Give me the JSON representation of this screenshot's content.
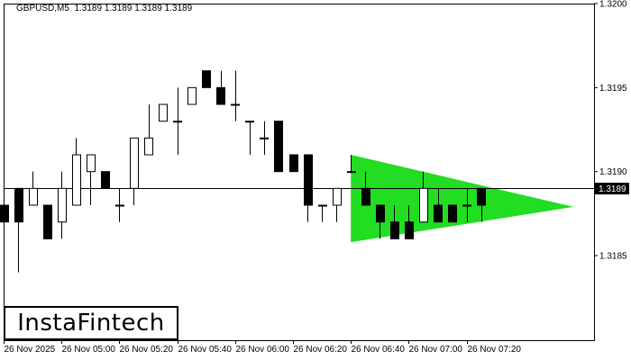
{
  "header": {
    "symbol": "GBPUSD,M5",
    "ohlc": "1.3189 1.3189 1.3189 1.3189"
  },
  "logo": {
    "text": "InstaFintech"
  },
  "colors": {
    "background": "#ffffff",
    "bull_candle": "#ffffff",
    "bear_candle": "#000000",
    "pattern_fill": "#22dd22",
    "axis": "#000000"
  },
  "chart_data": {
    "type": "candlestick",
    "symbol": "GBPUSD",
    "timeframe": "M5",
    "ylim": [
      1.3179,
      1.32
    ],
    "y_ticks": [
      "1.3200",
      "1.3195",
      "1.3190",
      "1.3185"
    ],
    "x_ticks": [
      {
        "label": "26 Nov 2025",
        "index": 0
      },
      {
        "label": "26 Nov 05:00",
        "index": 4
      },
      {
        "label": "26 Nov 05:20",
        "index": 8
      },
      {
        "label": "26 Nov 05:40",
        "index": 12
      },
      {
        "label": "26 Nov 06:00",
        "index": 16
      },
      {
        "label": "26 Nov 06:20",
        "index": 20
      },
      {
        "label": "26 Nov 06:40",
        "index": 24
      },
      {
        "label": "26 Nov 07:00",
        "index": 28
      },
      {
        "label": "26 Nov 07:20",
        "index": 32
      }
    ],
    "current_price": {
      "value": 1.3189,
      "label": "1.3189"
    },
    "candles": [
      {
        "o": 1.3188,
        "h": 1.319,
        "l": 1.3186,
        "c": 1.3187
      },
      {
        "o": 1.3189,
        "h": 1.3189,
        "l": 1.3184,
        "c": 1.3187
      },
      {
        "o": 1.3188,
        "h": 1.319,
        "l": 1.3188,
        "c": 1.3189
      },
      {
        "o": 1.3188,
        "h": 1.3188,
        "l": 1.3186,
        "c": 1.3186
      },
      {
        "o": 1.3187,
        "h": 1.319,
        "l": 1.3186,
        "c": 1.3189
      },
      {
        "o": 1.3188,
        "h": 1.3192,
        "l": 1.3188,
        "c": 1.3191
      },
      {
        "o": 1.319,
        "h": 1.3191,
        "l": 1.3188,
        "c": 1.3191
      },
      {
        "o": 1.319,
        "h": 1.319,
        "l": 1.3189,
        "c": 1.3189
      },
      {
        "o": 1.3188,
        "h": 1.3189,
        "l": 1.3187,
        "c": 1.3188
      },
      {
        "o": 1.3189,
        "h": 1.3192,
        "l": 1.3188,
        "c": 1.3192
      },
      {
        "o": 1.3191,
        "h": 1.3194,
        "l": 1.3191,
        "c": 1.3192
      },
      {
        "o": 1.3193,
        "h": 1.3194,
        "l": 1.3193,
        "c": 1.3194
      },
      {
        "o": 1.3193,
        "h": 1.3195,
        "l": 1.3191,
        "c": 1.3193
      },
      {
        "o": 1.3194,
        "h": 1.3195,
        "l": 1.3194,
        "c": 1.3195
      },
      {
        "o": 1.3196,
        "h": 1.3196,
        "l": 1.3195,
        "c": 1.3195
      },
      {
        "o": 1.3195,
        "h": 1.3196,
        "l": 1.3194,
        "c": 1.3194
      },
      {
        "o": 1.3194,
        "h": 1.3196,
        "l": 1.3193,
        "c": 1.3194
      },
      {
        "o": 1.3193,
        "h": 1.3193,
        "l": 1.3191,
        "c": 1.3193
      },
      {
        "o": 1.3192,
        "h": 1.3193,
        "l": 1.3191,
        "c": 1.3192
      },
      {
        "o": 1.3193,
        "h": 1.3193,
        "l": 1.319,
        "c": 1.319
      },
      {
        "o": 1.3191,
        "h": 1.3191,
        "l": 1.319,
        "c": 1.319
      },
      {
        "o": 1.3191,
        "h": 1.3191,
        "l": 1.3187,
        "c": 1.3188
      },
      {
        "o": 1.3188,
        "h": 1.3188,
        "l": 1.3187,
        "c": 1.3188
      },
      {
        "o": 1.3188,
        "h": 1.3189,
        "l": 1.3187,
        "c": 1.3189
      },
      {
        "o": 1.319,
        "h": 1.3191,
        "l": 1.319,
        "c": 1.319
      },
      {
        "o": 1.3189,
        "h": 1.319,
        "l": 1.3188,
        "c": 1.3188
      },
      {
        "o": 1.3188,
        "h": 1.3188,
        "l": 1.3186,
        "c": 1.3187
      },
      {
        "o": 1.3187,
        "h": 1.3188,
        "l": 1.3186,
        "c": 1.3186
      },
      {
        "o": 1.3187,
        "h": 1.3188,
        "l": 1.3186,
        "c": 1.3186
      },
      {
        "o": 1.3187,
        "h": 1.319,
        "l": 1.3187,
        "c": 1.3189
      },
      {
        "o": 1.3188,
        "h": 1.3189,
        "l": 1.3187,
        "c": 1.3187
      },
      {
        "o": 1.3188,
        "h": 1.3188,
        "l": 1.3187,
        "c": 1.3187
      },
      {
        "o": 1.3188,
        "h": 1.3189,
        "l": 1.3187,
        "c": 1.3188
      },
      {
        "o": 1.3189,
        "h": 1.3189,
        "l": 1.3187,
        "c": 1.3188
      }
    ],
    "pattern": {
      "type": "triangle",
      "color": "#22dd22",
      "points": [
        {
          "index": 24,
          "price": 1.3191
        },
        {
          "index": 24,
          "price": 1.31858
        },
        {
          "index": 39.4,
          "price": 1.31879
        }
      ]
    },
    "grid": false
  }
}
